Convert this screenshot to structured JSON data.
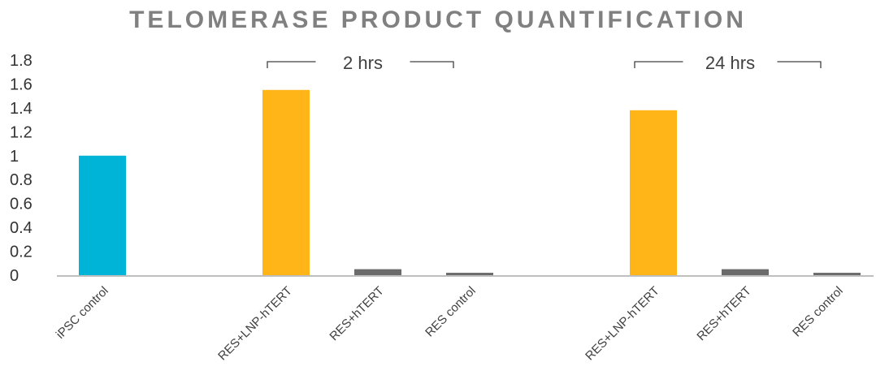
{
  "chart_data": {
    "type": "bar",
    "title": "TELOMERASE PRODUCT QUANTIFICATION",
    "xlabel": "",
    "ylabel": "",
    "ylim": [
      0,
      1.8
    ],
    "yticks": [
      "0",
      "0.2",
      "0.4",
      "0.6",
      "0.8",
      "1",
      "1.2",
      "1.4",
      "1.6",
      "1.8"
    ],
    "categories": [
      "iPSC control",
      "",
      "RES+LNP-hTERT",
      "RES+hTERT",
      "RES control",
      "",
      "RES+LNP-hTERT",
      "RES+hTERT",
      "RES control"
    ],
    "values": [
      1.0,
      null,
      1.55,
      0.05,
      0.02,
      null,
      1.38,
      0.05,
      0.02
    ],
    "bar_colors": [
      "#00B4D8",
      null,
      "#FFB517",
      "#6B6B6B",
      "#6B6B6B",
      null,
      "#FFB517",
      "#6B6B6B",
      "#6B6B6B"
    ],
    "groups": [
      {
        "label": "2 hrs",
        "start": 2,
        "end": 4
      },
      {
        "label": "24 hrs",
        "start": 6,
        "end": 8
      }
    ],
    "grid": false,
    "legend": "none"
  }
}
